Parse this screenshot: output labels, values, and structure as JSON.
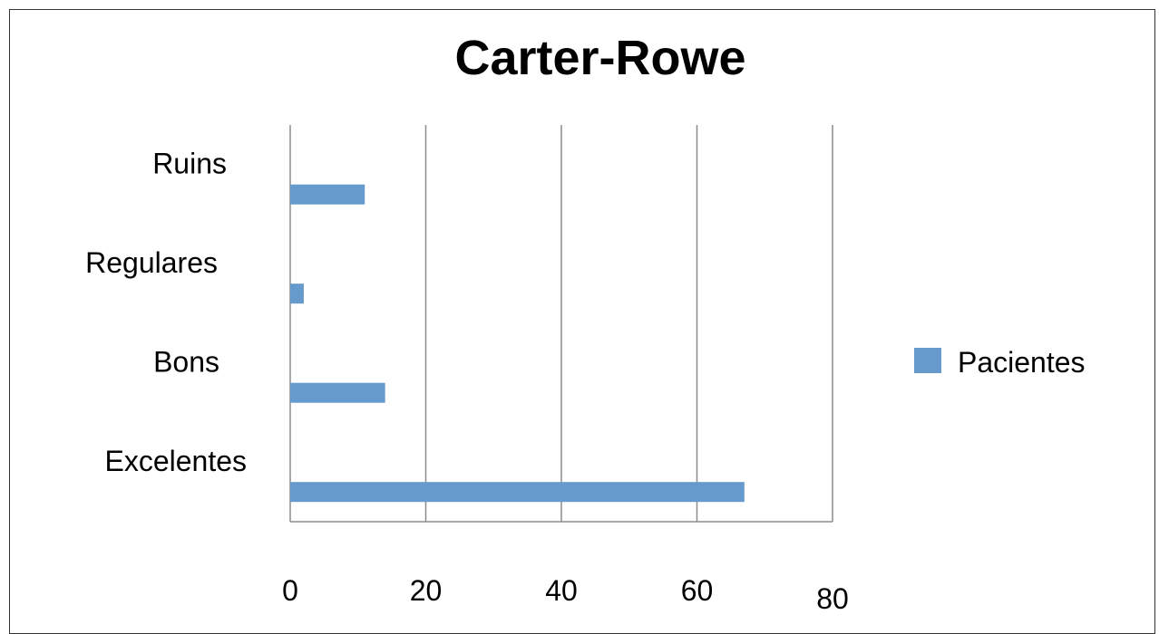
{
  "chart_data": {
    "type": "bar",
    "orientation": "horizontal",
    "title": "Carter-Rowe",
    "categories": [
      "Ruins",
      "Regulares",
      "Bons",
      "Excelentes"
    ],
    "series": [
      {
        "name": "Pacientes",
        "values": [
          11,
          2,
          14,
          67
        ],
        "color": "#6699CC"
      }
    ],
    "xlim": [
      0,
      80
    ],
    "xticks": [
      "0",
      "20",
      "40",
      "60",
      "80"
    ],
    "grid": "vertical",
    "legend": "right"
  }
}
